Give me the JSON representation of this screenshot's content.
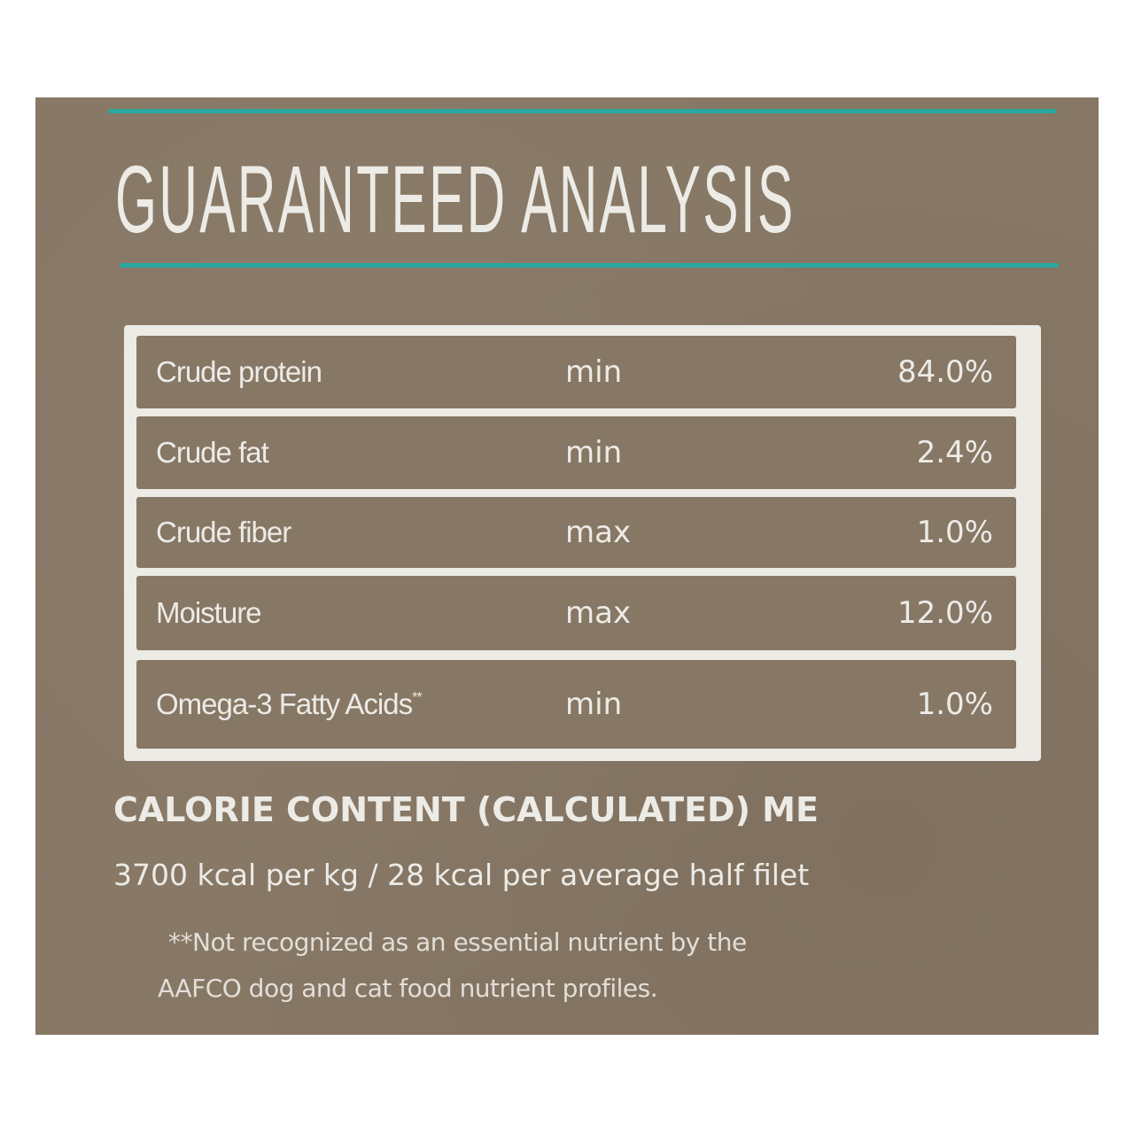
{
  "heading": "GUARANTEED ANALYSIS",
  "rows": [
    {
      "label": "Crude protein",
      "qualifier": "min",
      "value": "84.0%"
    },
    {
      "label": "Crude fat",
      "qualifier": "min",
      "value": "2.4%"
    },
    {
      "label": "Crude fiber",
      "qualifier": "max",
      "value": "1.0%"
    },
    {
      "label": "Moisture",
      "qualifier": "max",
      "value": "12.0%"
    },
    {
      "label": "Omega-3 Fatty Acids",
      "marker": "**",
      "qualifier": "min",
      "value": "1.0%"
    }
  ],
  "calorie": {
    "heading": "CALORIE CONTENT (CALCULATED) ME",
    "value": "3700 kcal per kg / 28 kcal per average half filet"
  },
  "footnote": {
    "line1": "**Not recognized as an essential nutrient by the",
    "line2": "AAFCO dog and cat food nutrient profiles."
  },
  "colors": {
    "background": "#877765",
    "accent": "#2aa8a0",
    "ink": "#ecebe6"
  }
}
